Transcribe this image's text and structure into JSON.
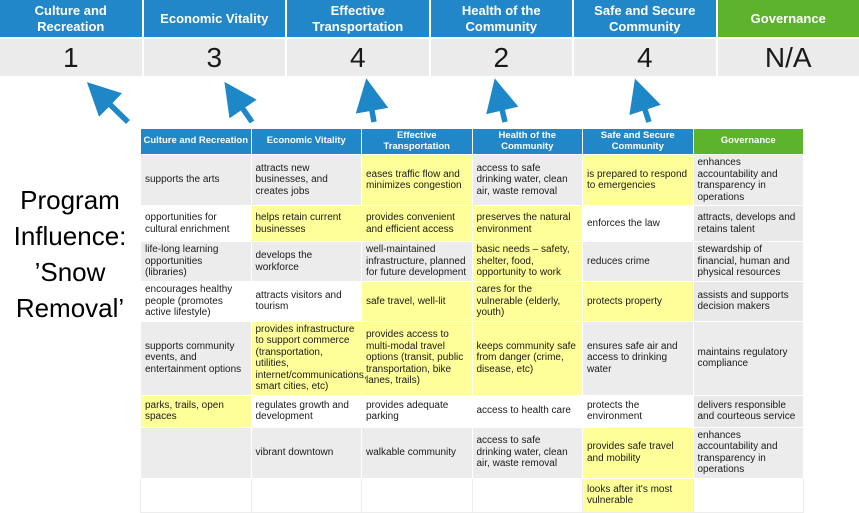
{
  "title": {
    "text": "Program Influence: ’Snow Removal’",
    "lines": [
      "Program",
      "Influence:",
      "’Snow",
      "Removal’"
    ]
  },
  "colors": {
    "header_blue": "#2287c8",
    "governance_green": "#5db32c",
    "highlight_yellow": "#ffff99",
    "score_row_gray": "#ebebeb",
    "arrow_blue": "#1e87c8"
  },
  "summary": {
    "columns": [
      {
        "label": "Culture and Recreation",
        "score": "1"
      },
      {
        "label": "Economic Vitality",
        "score": "3"
      },
      {
        "label": "Effective Transportation",
        "score": "4"
      },
      {
        "label": "Health of the Community",
        "score": "2"
      },
      {
        "label": "Safe and Secure Community",
        "score": "4"
      },
      {
        "label": "Governance",
        "score": "N/A"
      }
    ]
  },
  "matrix": {
    "headers": [
      "Culture and Recreation",
      "Economic Vitality",
      "Effective Transportation",
      "Health of the Community",
      "Safe and Secure Community",
      "Governance"
    ],
    "rows": [
      {
        "cells": [
          {
            "text": "supports the arts",
            "highlight": false
          },
          {
            "text": "attracts new businesses, and creates jobs",
            "highlight": false
          },
          {
            "text": "eases traffic flow and minimizes congestion",
            "highlight": true
          },
          {
            "text": "access to safe drinking water, clean air, waste removal",
            "highlight": false
          },
          {
            "text": "is prepared to respond to emergencies",
            "highlight": true
          },
          {
            "text": "enhances accountability and transparency in operations",
            "highlight": false
          }
        ]
      },
      {
        "cells": [
          {
            "text": "opportunities for cultural enrichment",
            "highlight": false
          },
          {
            "text": "helps retain current businesses",
            "highlight": true
          },
          {
            "text": "provides convenient and efficient access",
            "highlight": true
          },
          {
            "text": "preserves the natural environment",
            "highlight": true
          },
          {
            "text": "enforces the law",
            "highlight": false
          },
          {
            "text": "attracts, develops and retains talent",
            "highlight": false
          }
        ]
      },
      {
        "cells": [
          {
            "text": "life-long learning opportunities (libraries)",
            "highlight": false
          },
          {
            "text": "develops the workforce",
            "highlight": false
          },
          {
            "text": "well-maintained infrastructure, planned for future development",
            "highlight": false
          },
          {
            "text": "basic needs – safety, shelter, food, opportunity to work",
            "highlight": true
          },
          {
            "text": "reduces crime",
            "highlight": false
          },
          {
            "text": "stewardship of financial, human and physical resources",
            "highlight": false
          }
        ]
      },
      {
        "cells": [
          {
            "text": "encourages healthy people (promotes active lifestyle)",
            "highlight": false
          },
          {
            "text": "attracts visitors and tourism",
            "highlight": false
          },
          {
            "text": "safe travel, well-lit",
            "highlight": true
          },
          {
            "text": "cares for the vulnerable (elderly, youth)",
            "highlight": true
          },
          {
            "text": "protects property",
            "highlight": true
          },
          {
            "text": "assists and supports decision makers",
            "highlight": false
          }
        ]
      },
      {
        "cells": [
          {
            "text": "supports community events, and entertainment options",
            "highlight": false
          },
          {
            "text": "provides infrastructure to support commerce (transportation, utilities, internet/communications, smart cities, etc)",
            "highlight": true
          },
          {
            "text": "provides access to multi-modal travel options (transit, public transportation, bike lanes, trails)",
            "highlight": true
          },
          {
            "text": "keeps community safe from danger (crime, disease, etc)",
            "highlight": true
          },
          {
            "text": "ensures safe air and access to drinking water",
            "highlight": false
          },
          {
            "text": "maintains regulatory compliance",
            "highlight": false
          }
        ]
      },
      {
        "cells": [
          {
            "text": "parks, trails, open spaces",
            "highlight": true
          },
          {
            "text": "regulates growth and development",
            "highlight": false
          },
          {
            "text": "provides adequate parking",
            "highlight": false
          },
          {
            "text": "access to health care",
            "highlight": false
          },
          {
            "text": "protects the environment",
            "highlight": false
          },
          {
            "text": "delivers responsible and courteous service",
            "highlight": false
          }
        ]
      },
      {
        "cells": [
          {
            "text": "",
            "highlight": false
          },
          {
            "text": "vibrant downtown",
            "highlight": false
          },
          {
            "text": "walkable community",
            "highlight": false
          },
          {
            "text": "access to safe drinking water, clean air, waste removal",
            "highlight": false
          },
          {
            "text": "provides safe travel and mobility",
            "highlight": true
          },
          {
            "text": "enhances accountability and transparency in operations",
            "highlight": false
          }
        ]
      },
      {
        "cells": [
          {
            "text": "",
            "highlight": false
          },
          {
            "text": "",
            "highlight": false
          },
          {
            "text": "",
            "highlight": false
          },
          {
            "text": "",
            "highlight": false
          },
          {
            "text": "looks after it's most vulnerable",
            "highlight": true
          },
          {
            "text": "",
            "highlight": false
          }
        ]
      }
    ]
  }
}
